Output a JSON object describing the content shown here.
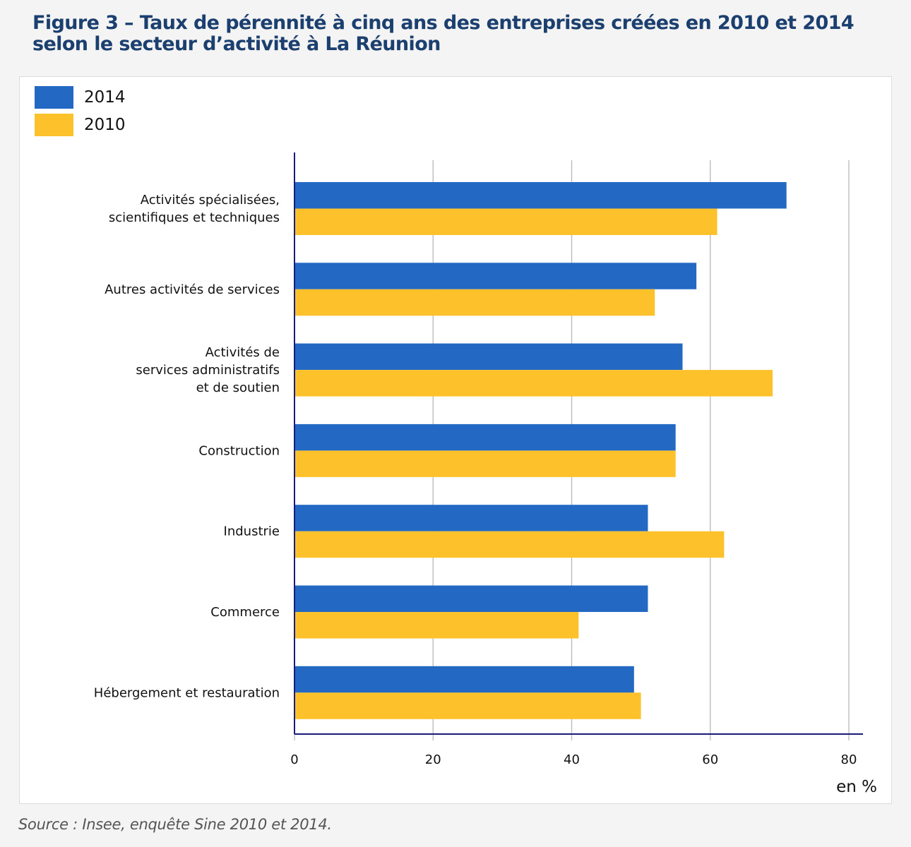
{
  "figure": {
    "title_line1": "Figure 3 – Taux de pérennité à cinq ans des entreprises créées en 2010 et 2014",
    "title_line2": "selon le secteur d’activité à La Réunion",
    "source": "Source : Insee, enquête Sine 2010 et 2014."
  },
  "colors": {
    "series_2014": "#2369c4",
    "series_2010": "#fdc22b",
    "axis": "#1a1a7a",
    "grid": "#b8b8b8",
    "title": "#1b3f6e"
  },
  "chart_data": {
    "type": "bar",
    "orientation": "horizontal",
    "title": "Figure 3 – Taux de pérennité à cinq ans des entreprises créées en 2010 et 2014 selon le secteur d’activité à La Réunion",
    "categories": [
      [
        "Activités spécialisées,",
        "scientifiques et techniques"
      ],
      [
        "Autres activités de services"
      ],
      [
        "Activités de",
        "services administratifs",
        "et de soutien"
      ],
      [
        "Construction"
      ],
      [
        "Industrie"
      ],
      [
        "Commerce"
      ],
      [
        "Hébergement et restauration"
      ]
    ],
    "series": [
      {
        "name": "2014",
        "values": [
          71,
          58,
          56,
          55,
          51,
          51,
          49
        ]
      },
      {
        "name": "2010",
        "values": [
          61,
          52,
          69,
          55,
          62,
          41,
          50
        ]
      }
    ],
    "xlabel": "en %",
    "ylabel": "",
    "xlim": [
      0,
      80
    ],
    "xticks": [
      0,
      20,
      40,
      60,
      80
    ],
    "grid": true,
    "legend": {
      "position": "top-left",
      "entries": [
        "2014",
        "2010"
      ]
    },
    "source": "Source : Insee, enquête Sine 2010 et 2014."
  }
}
